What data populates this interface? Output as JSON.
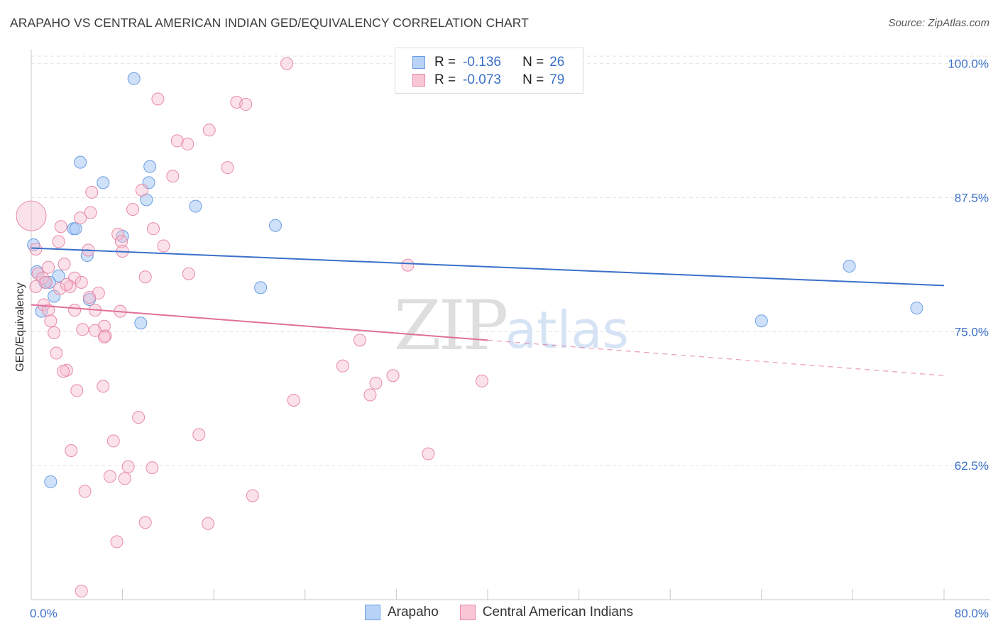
{
  "header": {
    "title": "ARAPAHO VS CENTRAL AMERICAN INDIAN GED/EQUIVALENCY CORRELATION CHART",
    "source": "Source: ZipAtlas.com"
  },
  "legend": {
    "rows": [
      {
        "r_label": "R =",
        "r_value": "-0.136",
        "n_label": "N =",
        "n_value": "26",
        "fill": "#b8d3f7",
        "stroke": "#6a9de3"
      },
      {
        "r_label": "R =",
        "r_value": "-0.073",
        "n_label": "N =",
        "n_value": "79",
        "fill": "#f9c6d6",
        "stroke": "#e889a8"
      }
    ]
  },
  "bottom_legend": [
    {
      "label": "Arapaho",
      "fill": "#b8d3f7",
      "stroke": "#6a9de3"
    },
    {
      "label": "Central American Indians",
      "fill": "#f9c6d6",
      "stroke": "#e889a8"
    }
  ],
  "watermark": {
    "zip": "ZIP",
    "atlas": "atlas"
  },
  "chart_data": {
    "type": "scatter",
    "ylabel": "GED/Equivalency",
    "xlim": [
      0,
      80
    ],
    "ylim": [
      50,
      101.3
    ],
    "x_tick_labels": [
      {
        "value": 0,
        "label": "0.0%"
      },
      {
        "value": 80,
        "label": "80.0%"
      }
    ],
    "y_tick_labels": [
      {
        "value": 100,
        "label": "100.0%"
      },
      {
        "value": 87.5,
        "label": "87.5%"
      },
      {
        "value": 75,
        "label": "75.0%"
      },
      {
        "value": 62.5,
        "label": "62.5%"
      }
    ],
    "grid": true,
    "colors": {
      "arapaho": "#3a70c9",
      "central": "#e07098"
    },
    "series": [
      {
        "name": "Arapaho",
        "fill": "rgba(168,200,244,0.55)",
        "stroke": "#6a9de3",
        "trend": {
          "x0": 0,
          "y0": 82.8,
          "x1": 80,
          "y1": 79.3,
          "dashed_from": null
        },
        "points": [
          [
            9.0,
            98.6
          ],
          [
            4.3,
            90.8
          ],
          [
            10.4,
            90.4
          ],
          [
            6.3,
            88.9
          ],
          [
            10.3,
            88.9
          ],
          [
            10.1,
            87.3
          ],
          [
            14.4,
            86.7
          ],
          [
            21.4,
            84.9
          ],
          [
            3.7,
            84.6
          ],
          [
            3.9,
            84.6
          ],
          [
            8.0,
            83.9
          ],
          [
            0.2,
            83.1
          ],
          [
            4.9,
            82.1
          ],
          [
            0.5,
            80.6
          ],
          [
            2.4,
            80.2
          ],
          [
            1.2,
            79.6
          ],
          [
            1.6,
            79.6
          ],
          [
            20.1,
            79.1
          ],
          [
            2.0,
            78.3
          ],
          [
            5.1,
            78.0
          ],
          [
            0.9,
            76.9
          ],
          [
            9.6,
            75.8
          ],
          [
            1.7,
            61.0
          ],
          [
            71.7,
            81.1
          ],
          [
            64.0,
            76.0
          ],
          [
            77.6,
            77.2
          ]
        ]
      },
      {
        "name": "Central American Indians",
        "fill": "rgba(247,190,208,0.45)",
        "stroke": "#e889a8",
        "trend": {
          "x0": 0,
          "y0": 77.5,
          "x1": 80,
          "y1": 70.9,
          "dashed_from": 40
        },
        "points": [
          [
            22.4,
            100.0
          ],
          [
            11.1,
            96.7
          ],
          [
            18.0,
            96.4
          ],
          [
            18.8,
            96.2
          ],
          [
            15.6,
            93.8
          ],
          [
            12.8,
            92.8
          ],
          [
            13.7,
            92.5
          ],
          [
            17.2,
            90.3
          ],
          [
            12.4,
            89.5
          ],
          [
            5.3,
            88.0
          ],
          [
            9.7,
            88.2
          ],
          [
            8.9,
            86.4
          ],
          [
            5.2,
            86.1
          ],
          [
            4.3,
            85.6
          ],
          [
            2.6,
            84.8
          ],
          [
            10.7,
            84.6
          ],
          [
            7.6,
            84.1
          ],
          [
            0.0,
            85.8
          ],
          [
            2.4,
            83.4
          ],
          [
            7.9,
            83.4
          ],
          [
            11.6,
            83.0
          ],
          [
            0.4,
            82.7
          ],
          [
            8.0,
            82.5
          ],
          [
            5.0,
            82.6
          ],
          [
            2.9,
            81.3
          ],
          [
            1.5,
            81.0
          ],
          [
            33.0,
            81.2
          ],
          [
            0.6,
            80.4
          ],
          [
            13.8,
            80.4
          ],
          [
            10.0,
            80.1
          ],
          [
            1.0,
            80.0
          ],
          [
            3.8,
            80.0
          ],
          [
            1.3,
            79.6
          ],
          [
            0.4,
            79.2
          ],
          [
            2.5,
            79.0
          ],
          [
            3.4,
            79.2
          ],
          [
            5.9,
            78.6
          ],
          [
            5.1,
            78.2
          ],
          [
            1.1,
            77.5
          ],
          [
            1.5,
            77.0
          ],
          [
            3.8,
            77.0
          ],
          [
            5.6,
            77.0
          ],
          [
            7.8,
            76.9
          ],
          [
            1.7,
            76.0
          ],
          [
            6.4,
            75.5
          ],
          [
            4.5,
            75.2
          ],
          [
            5.6,
            75.1
          ],
          [
            6.5,
            74.6
          ],
          [
            6.4,
            74.5
          ],
          [
            2.0,
            74.9
          ],
          [
            28.8,
            74.2
          ],
          [
            2.2,
            73.0
          ],
          [
            27.3,
            71.8
          ],
          [
            3.1,
            71.4
          ],
          [
            2.8,
            71.3
          ],
          [
            31.7,
            70.9
          ],
          [
            39.5,
            70.4
          ],
          [
            30.2,
            70.2
          ],
          [
            6.3,
            69.9
          ],
          [
            4.0,
            69.5
          ],
          [
            29.7,
            69.1
          ],
          [
            23.0,
            68.6
          ],
          [
            9.4,
            67.0
          ],
          [
            14.7,
            65.4
          ],
          [
            7.2,
            64.8
          ],
          [
            3.5,
            63.9
          ],
          [
            34.8,
            63.6
          ],
          [
            8.5,
            62.4
          ],
          [
            10.6,
            62.3
          ],
          [
            6.9,
            61.5
          ],
          [
            8.2,
            61.3
          ],
          [
            4.7,
            60.1
          ],
          [
            19.4,
            59.7
          ],
          [
            10.0,
            57.2
          ],
          [
            15.5,
            57.1
          ],
          [
            7.5,
            55.4
          ],
          [
            4.4,
            50.8
          ],
          [
            4.4,
            79.6
          ],
          [
            3.1,
            79.4
          ]
        ]
      }
    ]
  }
}
